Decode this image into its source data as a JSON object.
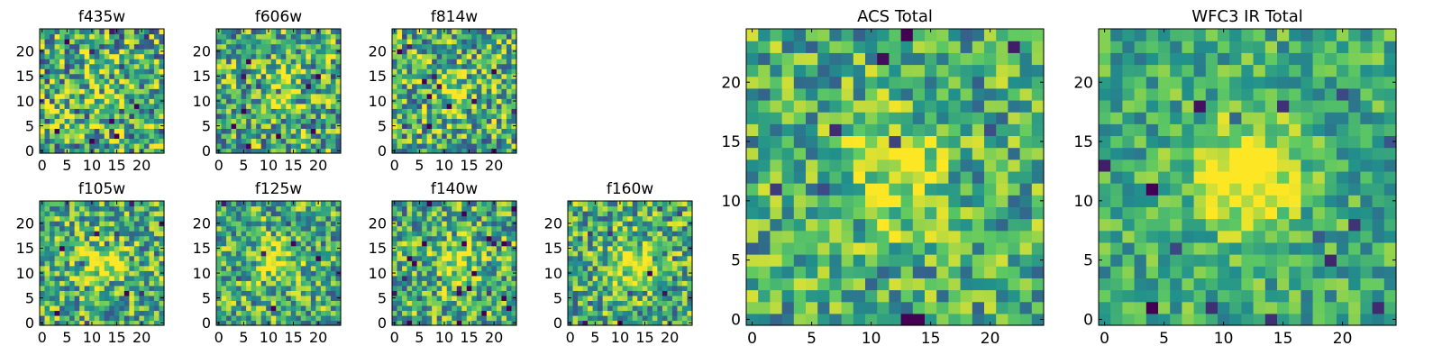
{
  "colormap": [
    "#440154",
    "#3b528b",
    "#21918c",
    "#5ec962",
    "#fde725"
  ],
  "chart_data": [
    {
      "type": "heatmap",
      "title": "f435w",
      "xticks": [
        "0",
        "5",
        "10",
        "15",
        "20"
      ],
      "yticks": [
        "0",
        "5",
        "10",
        "15",
        "20"
      ],
      "xlim": [
        -0.5,
        24.5
      ],
      "ylim": [
        -0.5,
        24.5
      ],
      "grid": false,
      "seed": 11,
      "peak": 0.12,
      "noise": 0.55
    },
    {
      "type": "heatmap",
      "title": "f606w",
      "xticks": [
        "0",
        "5",
        "10",
        "15",
        "20"
      ],
      "yticks": [
        "0",
        "5",
        "10",
        "15",
        "20"
      ],
      "xlim": [
        -0.5,
        24.5
      ],
      "ylim": [
        -0.5,
        24.5
      ],
      "grid": false,
      "seed": 23,
      "peak": 0.25,
      "noise": 0.5
    },
    {
      "type": "heatmap",
      "title": "f814w",
      "xticks": [
        "0",
        "5",
        "10",
        "15",
        "20"
      ],
      "yticks": [
        "0",
        "5",
        "10",
        "15",
        "20"
      ],
      "xlim": [
        -0.5,
        24.5
      ],
      "ylim": [
        -0.5,
        24.5
      ],
      "grid": false,
      "seed": 37,
      "peak": 0.25,
      "noise": 0.5
    },
    {
      "type": "heatmap",
      "title": "f105w",
      "xticks": [
        "0",
        "5",
        "10",
        "15",
        "20"
      ],
      "yticks": [
        "0",
        "5",
        "10",
        "15",
        "20"
      ],
      "xlim": [
        -0.5,
        24.5
      ],
      "ylim": [
        -0.5,
        24.5
      ],
      "grid": false,
      "seed": 41,
      "peak": 0.4,
      "noise": 0.45
    },
    {
      "type": "heatmap",
      "title": "f125w",
      "xticks": [
        "0",
        "5",
        "10",
        "15",
        "20"
      ],
      "yticks": [
        "0",
        "5",
        "10",
        "15",
        "20"
      ],
      "xlim": [
        -0.5,
        24.5
      ],
      "ylim": [
        -0.5,
        24.5
      ],
      "grid": false,
      "seed": 53,
      "peak": 0.35,
      "noise": 0.45
    },
    {
      "type": "heatmap",
      "title": "f140w",
      "xticks": [
        "0",
        "5",
        "10",
        "15",
        "20"
      ],
      "yticks": [
        "0",
        "5",
        "10",
        "15",
        "20"
      ],
      "xlim": [
        -0.5,
        24.5
      ],
      "ylim": [
        -0.5,
        24.5
      ],
      "grid": false,
      "seed": 67,
      "peak": 0.35,
      "noise": 0.45
    },
    {
      "type": "heatmap",
      "title": "f160w",
      "xticks": [
        "0",
        "5",
        "10",
        "15",
        "20"
      ],
      "yticks": [
        "0",
        "5",
        "10",
        "15",
        "20"
      ],
      "xlim": [
        -0.5,
        24.5
      ],
      "ylim": [
        -0.5,
        24.5
      ],
      "grid": false,
      "seed": 79,
      "peak": 0.4,
      "noise": 0.45
    },
    {
      "type": "heatmap",
      "title": "ACS Total",
      "xticks": [
        "0",
        "5",
        "10",
        "15",
        "20"
      ],
      "yticks": [
        "0",
        "5",
        "10",
        "15",
        "20"
      ],
      "xlim": [
        -0.5,
        24.5
      ],
      "ylim": [
        -0.5,
        24.5
      ],
      "grid": false,
      "seed": 97,
      "peak": 0.35,
      "noise": 0.4
    },
    {
      "type": "heatmap",
      "title": "WFC3 IR Total",
      "xticks": [
        "0",
        "5",
        "10",
        "15",
        "20"
      ],
      "yticks": [
        "0",
        "5",
        "10",
        "15",
        "20"
      ],
      "xlim": [
        -0.5,
        24.5
      ],
      "ylim": [
        -0.5,
        24.5
      ],
      "grid": false,
      "seed": 131,
      "peak": 0.55,
      "noise": 0.3
    }
  ]
}
